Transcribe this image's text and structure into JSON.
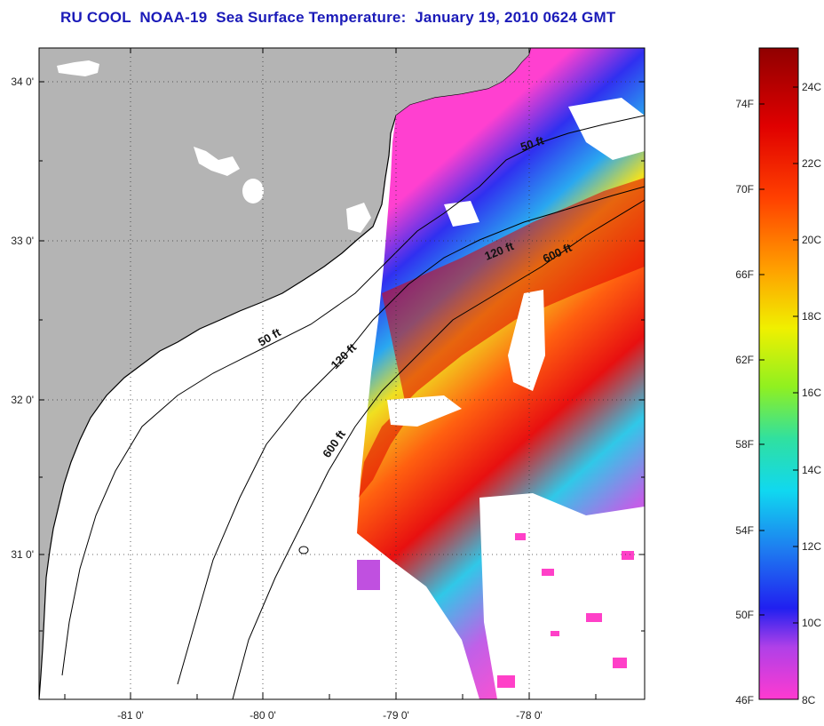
{
  "title": "RU COOL  NOAA-19  Sea Surface Temperature:  January 19, 2010 0624 GMT",
  "map": {
    "lat_ticks": [
      "34 0'",
      "33 0'",
      "32 0'",
      "31 0'"
    ],
    "lon_ticks": [
      "-81 0'",
      "-80 0'",
      "-79 0'",
      "-78 0'"
    ],
    "contours": [
      "50 ft",
      "120 ft",
      "600 ft"
    ],
    "contour_labels": [
      "50 ft",
      "50 ft",
      "120 ft",
      "120 ft",
      "600 ft",
      "600 ft"
    ],
    "colors": {
      "land": "#b4b4b4",
      "ocean_no_data": "#ffffff",
      "coastline": "#000000"
    }
  },
  "colorbar": {
    "fahrenheit_ticks": [
      "74F",
      "70F",
      "66F",
      "62F",
      "58F",
      "54F",
      "50F",
      "46F"
    ],
    "celsius_ticks": [
      "24C",
      "22C",
      "20C",
      "18C",
      "16C",
      "14C",
      "12C",
      "10C",
      "8C"
    ],
    "colors": [
      "#ff3ad0",
      "#b040e8",
      "#2020f0",
      "#1e7cf0",
      "#10d8f0",
      "#30e0a0",
      "#90f020",
      "#f0f000",
      "#ffa000",
      "#ff4000",
      "#e00000",
      "#900000"
    ]
  }
}
